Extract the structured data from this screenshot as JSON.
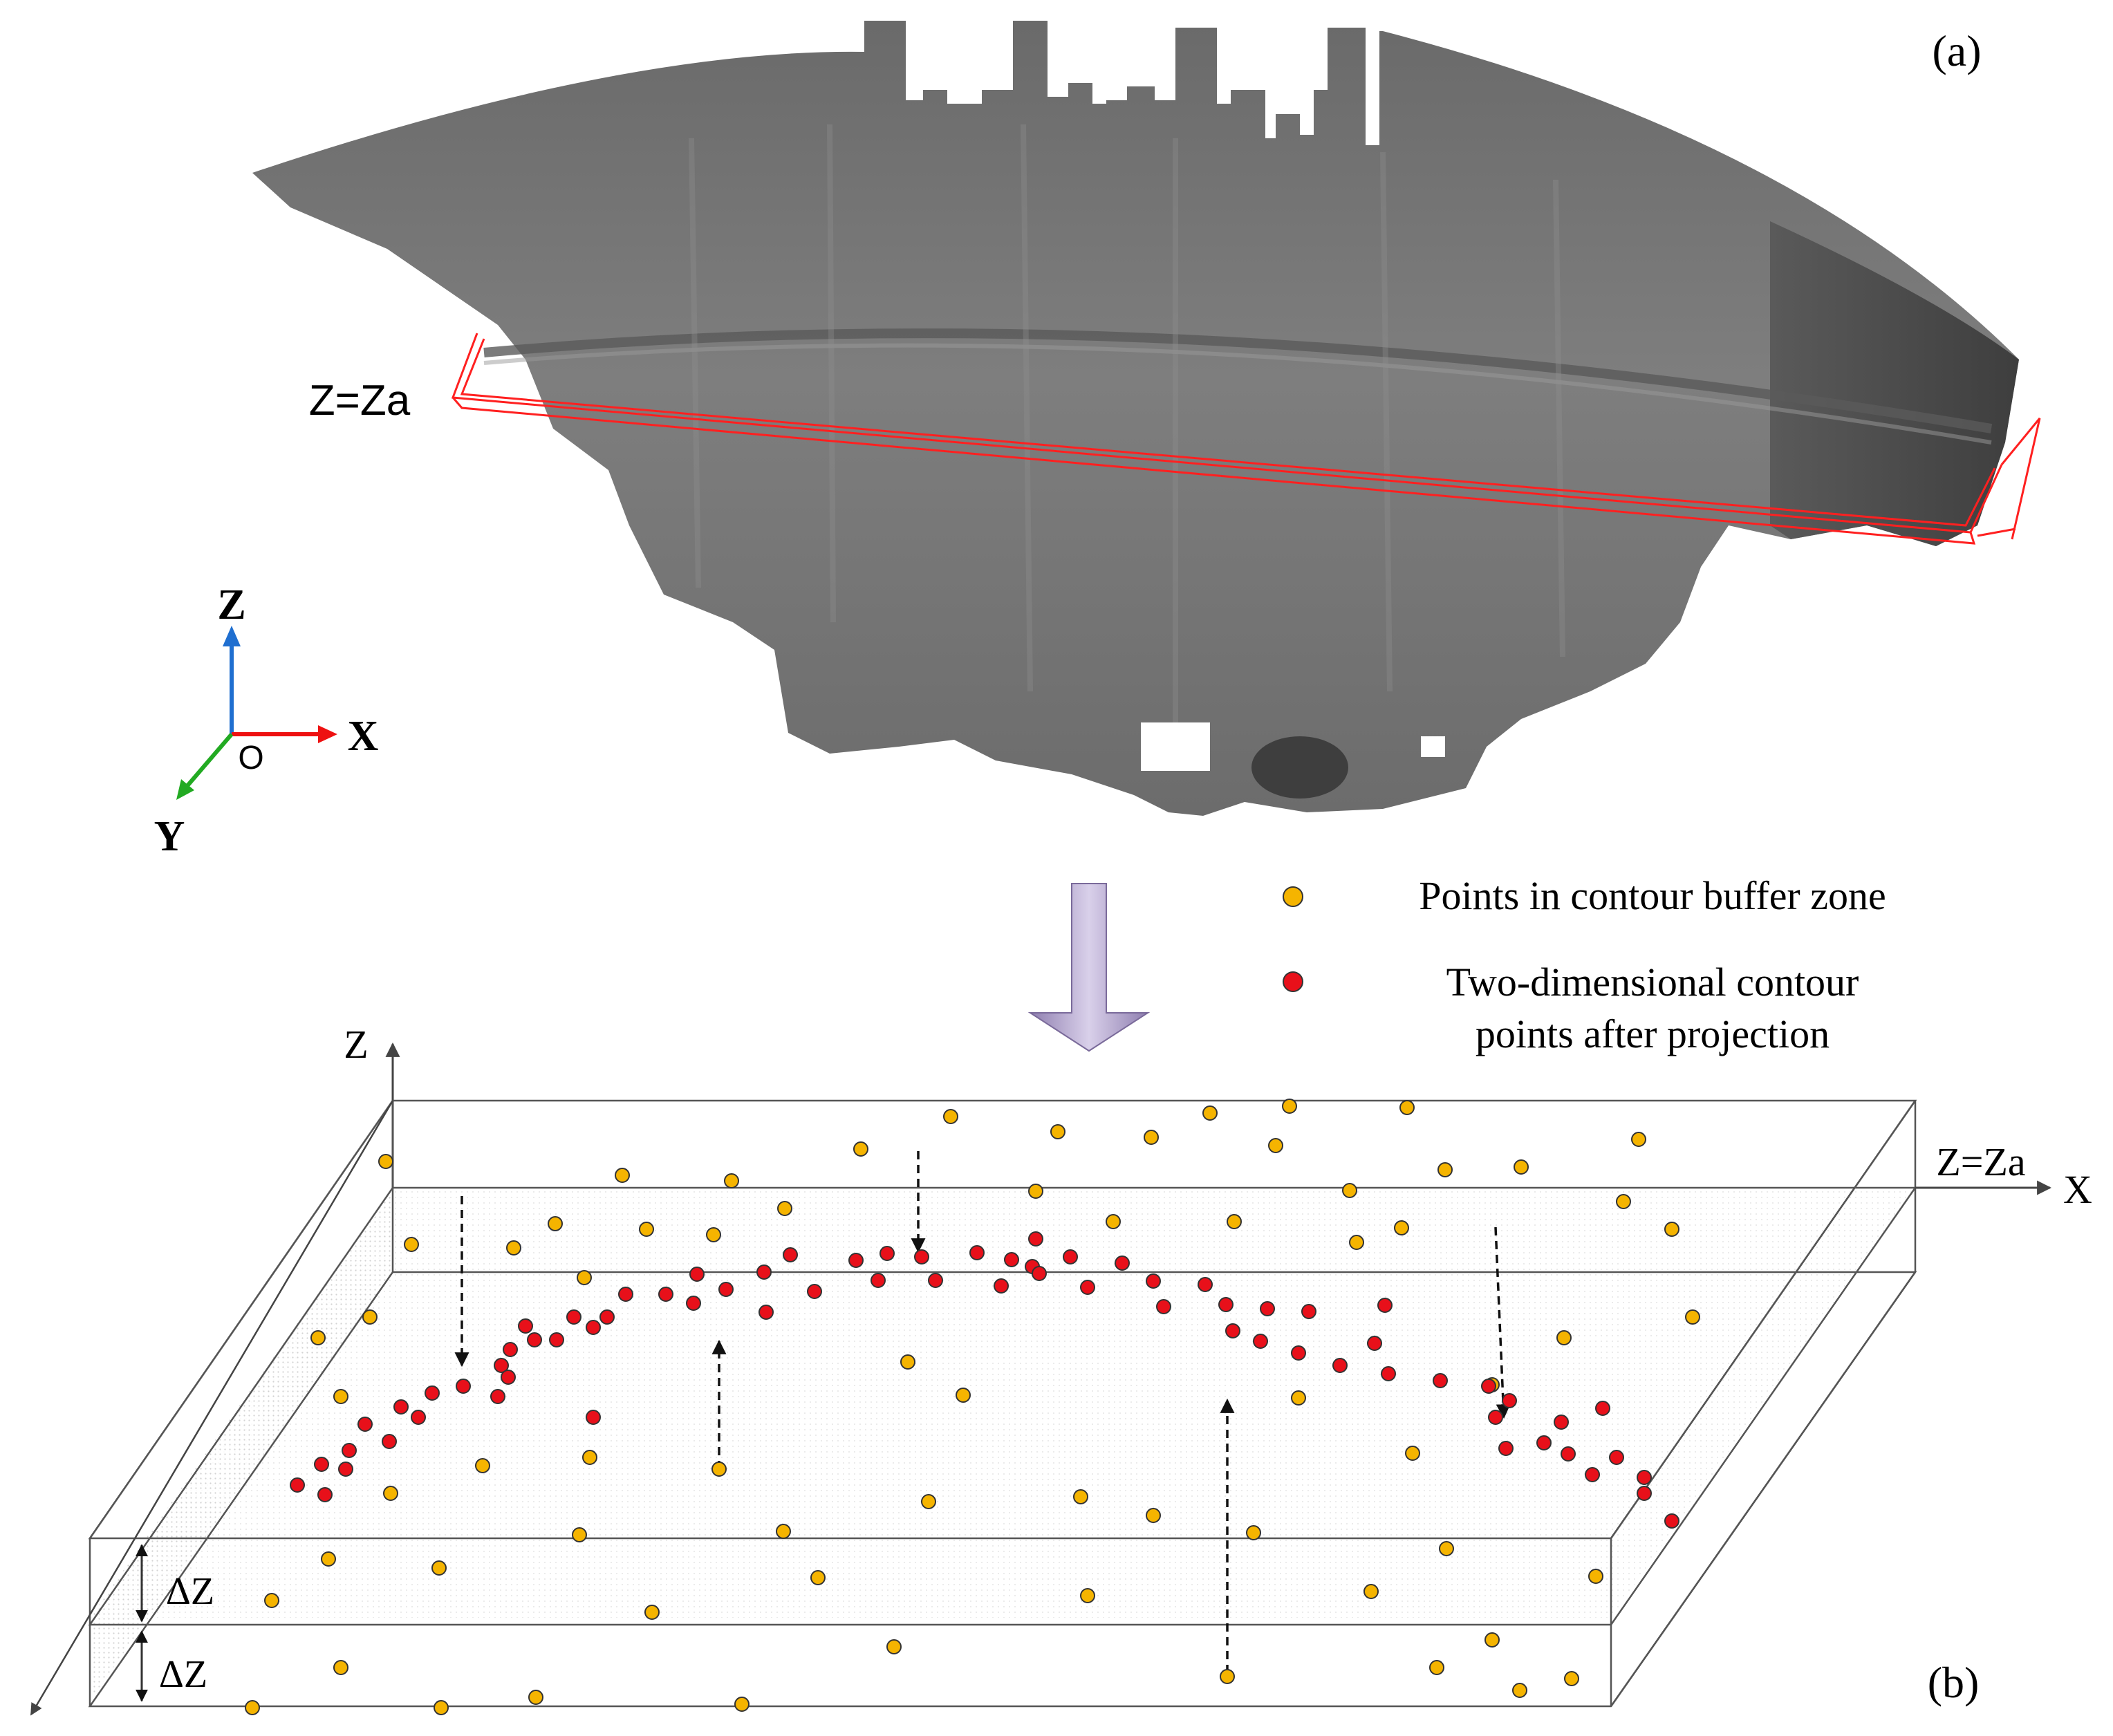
{
  "panel_a": {
    "label": "(a)",
    "plane_label": "Z=Za",
    "axes": {
      "z": "Z",
      "x": "X",
      "y": "Y",
      "origin": "O"
    },
    "colors": {
      "slice_box": "#ff2020",
      "z_axis": "#1f6fd0",
      "x_axis": "#ee1111",
      "y_axis": "#22aa22"
    }
  },
  "panel_b": {
    "label": "(b)",
    "axes": {
      "z": "Z",
      "x": "X"
    },
    "plane_label": "Z=Za",
    "buffer_label_upper": "ΔZ",
    "buffer_label_lower": "ΔZ",
    "legend": [
      {
        "label": "Points in contour buffer zone",
        "color": "#f5b400"
      },
      {
        "label_line1": "Two-dimensional contour",
        "label_line2": "points after projection",
        "color": "#e8101a"
      }
    ]
  }
}
